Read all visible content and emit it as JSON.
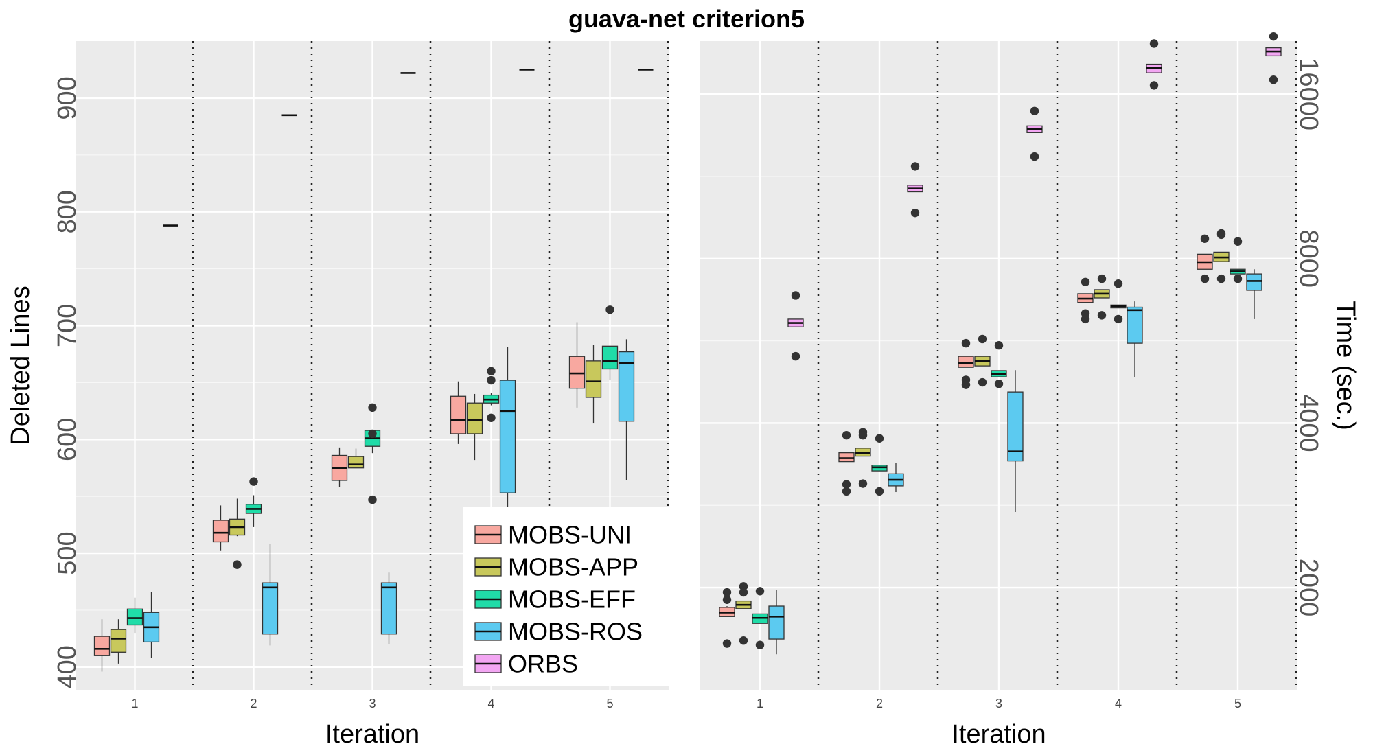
{
  "title": "guava-net criterion5",
  "legend": {
    "entries": [
      "MOBS-UNI",
      "MOBS-APP",
      "MOBS-EFF",
      "MOBS-ROS",
      "ORBS"
    ],
    "colors": [
      "#f8a8a0",
      "#c8c85c",
      "#20dca8",
      "#5ccaf0",
      "#f2a6f2"
    ]
  },
  "chart_data": [
    {
      "type": "box",
      "panel": "left",
      "xlabel": "Iteration",
      "ylabel": "Deleted Lines",
      "categories": [
        "1",
        "2",
        "3",
        "4",
        "5"
      ],
      "yticks": [
        "400",
        "500",
        "600",
        "700",
        "800",
        "900"
      ],
      "ylim": [
        380,
        950
      ],
      "grid": true,
      "series": [
        {
          "name": "MOBS-UNI",
          "boxes": [
            {
              "min": 396,
              "q1": 410,
              "median": 416,
              "q3": 427,
              "max": 442,
              "outliers": []
            },
            {
              "min": 502,
              "q1": 510,
              "median": 518,
              "q3": 529,
              "max": 542,
              "outliers": []
            },
            {
              "min": 558,
              "q1": 564,
              "median": 575,
              "q3": 586,
              "max": 593,
              "outliers": []
            },
            {
              "min": 596,
              "q1": 605,
              "median": 617,
              "q3": 638,
              "max": 651,
              "outliers": []
            },
            {
              "min": 628,
              "q1": 645,
              "median": 658,
              "q3": 673,
              "max": 703,
              "outliers": []
            }
          ]
        },
        {
          "name": "MOBS-APP",
          "boxes": [
            {
              "min": 403,
              "q1": 413,
              "median": 425,
              "q3": 433,
              "max": 442,
              "outliers": []
            },
            {
              "min": 515,
              "q1": 516,
              "median": 523,
              "q3": 530,
              "max": 548,
              "outliers": [
                490
              ]
            },
            {
              "min": 575,
              "q1": 575,
              "median": 578,
              "q3": 585,
              "max": 592,
              "outliers": []
            },
            {
              "min": 582,
              "q1": 605,
              "median": 617,
              "q3": 632,
              "max": 640,
              "outliers": []
            },
            {
              "min": 614,
              "q1": 637,
              "median": 651,
              "q3": 669,
              "max": 683,
              "outliers": []
            }
          ]
        },
        {
          "name": "MOBS-EFF",
          "boxes": [
            {
              "min": 430,
              "q1": 437,
              "median": 443,
              "q3": 451,
              "max": 461,
              "outliers": []
            },
            {
              "min": 523,
              "q1": 535,
              "median": 539,
              "q3": 543,
              "max": 551,
              "outliers": [
                563
              ]
            },
            {
              "min": 588,
              "q1": 594,
              "median": 601,
              "q3": 608,
              "max": 608,
              "outliers": [
                628,
                605,
                547
              ]
            },
            {
              "min": 630,
              "q1": 632,
              "median": 635,
              "q3": 639,
              "max": 641,
              "outliers": [
                660,
                652,
                619
              ]
            },
            {
              "min": 652,
              "q1": 662,
              "median": 669,
              "q3": 682,
              "max": 682,
              "outliers": [
                714
              ]
            }
          ]
        },
        {
          "name": "MOBS-ROS",
          "boxes": [
            {
              "min": 408,
              "q1": 422,
              "median": 435,
              "q3": 448,
              "max": 466,
              "outliers": []
            },
            {
              "min": 419,
              "q1": 429,
              "median": 470,
              "q3": 474,
              "max": 508,
              "outliers": []
            },
            {
              "min": 420,
              "q1": 429,
              "median": 470,
              "q3": 474,
              "max": 483,
              "outliers": []
            },
            {
              "min": 530,
              "q1": 553,
              "median": 625,
              "q3": 652,
              "max": 681,
              "outliers": []
            },
            {
              "min": 564,
              "q1": 616,
              "median": 667,
              "q3": 677,
              "max": 688,
              "outliers": []
            }
          ]
        },
        {
          "name": "ORBS",
          "boxes": [
            {
              "min": 788,
              "q1": 788,
              "median": 788,
              "q3": 788,
              "max": 788,
              "outliers": []
            },
            {
              "min": 885,
              "q1": 885,
              "median": 885,
              "q3": 885,
              "max": 885,
              "outliers": []
            },
            {
              "min": 922,
              "q1": 922,
              "median": 922,
              "q3": 922,
              "max": 922,
              "outliers": []
            },
            {
              "min": 925,
              "q1": 925,
              "median": 925,
              "q3": 925,
              "max": 925,
              "outliers": []
            },
            {
              "min": 925,
              "q1": 925,
              "median": 925,
              "q3": 925,
              "max": 925,
              "outliers": []
            }
          ]
        }
      ]
    },
    {
      "type": "box",
      "panel": "right",
      "xlabel": "Iteration",
      "ylabel": "Time (sec.)",
      "yscale": "log",
      "categories": [
        "1",
        "2",
        "3",
        "4",
        "5"
      ],
      "yticks": [
        "2000",
        "4000",
        "8000",
        "16000"
      ],
      "ylim": [
        1300,
        20000
      ],
      "grid": true,
      "series": [
        {
          "name": "MOBS-UNI",
          "boxes": [
            {
              "min": 1770,
              "q1": 1770,
              "median": 1800,
              "q3": 1840,
              "max": 1850,
              "outliers": [
                1900,
                1960,
                1580
              ]
            },
            {
              "min": 3400,
              "q1": 3400,
              "median": 3450,
              "q3": 3530,
              "max": 3530,
              "outliers": [
                3800,
                3090,
                3000
              ]
            },
            {
              "min": 5060,
              "q1": 5060,
              "median": 5150,
              "q3": 5300,
              "max": 5300,
              "outliers": [
                5600,
                4800,
                4700
              ]
            },
            {
              "min": 6650,
              "q1": 6650,
              "median": 6760,
              "q3": 6900,
              "max": 6900,
              "outliers": [
                7250,
                6350,
                6200
              ]
            },
            {
              "min": 7650,
              "q1": 7650,
              "median": 7880,
              "q3": 8150,
              "max": 8150,
              "outliers": [
                8700,
                7350
              ]
            }
          ]
        },
        {
          "name": "MOBS-APP",
          "boxes": [
            {
              "min": 1830,
              "q1": 1830,
              "median": 1860,
              "q3": 1890,
              "max": 1890,
              "outliers": [
                2010,
                1960,
                1600
              ]
            },
            {
              "min": 3480,
              "q1": 3480,
              "median": 3530,
              "q3": 3600,
              "max": 3600,
              "outliers": [
                3850,
                3800,
                3100
              ]
            },
            {
              "min": 5090,
              "q1": 5090,
              "median": 5200,
              "q3": 5300,
              "max": 5300,
              "outliers": [
                5700,
                4750
              ]
            },
            {
              "min": 6780,
              "q1": 6780,
              "median": 6900,
              "q3": 7020,
              "max": 7020,
              "outliers": [
                7350,
                6300
              ]
            },
            {
              "min": 7900,
              "q1": 7900,
              "median": 8040,
              "q3": 8220,
              "max": 8220,
              "outliers": [
                8900,
                8850,
                7350
              ]
            }
          ]
        },
        {
          "name": "MOBS-EFF",
          "boxes": [
            {
              "min": 1720,
              "q1": 1720,
              "median": 1760,
              "q3": 1790,
              "max": 1790,
              "outliers": [
                1970,
                1570
              ]
            },
            {
              "min": 3270,
              "q1": 3270,
              "median": 3320,
              "q3": 3350,
              "max": 3350,
              "outliers": [
                3750,
                3000
              ]
            },
            {
              "min": 4860,
              "q1": 4860,
              "median": 4920,
              "q3": 4990,
              "max": 4990,
              "outliers": [
                5550,
                4720
              ]
            },
            {
              "min": 6500,
              "q1": 6500,
              "median": 6550,
              "q3": 6580,
              "max": 6580,
              "outliers": [
                7200,
                6200
              ]
            },
            {
              "min": 7500,
              "q1": 7500,
              "median": 7580,
              "q3": 7650,
              "max": 7650,
              "outliers": [
                8600,
                7350
              ]
            }
          ]
        },
        {
          "name": "MOBS-ROS",
          "boxes": [
            {
              "min": 1510,
              "q1": 1610,
              "median": 1770,
              "q3": 1850,
              "max": 1980,
              "outliers": []
            },
            {
              "min": 2990,
              "q1": 3070,
              "median": 3150,
              "q3": 3230,
              "max": 3380,
              "outliers": []
            },
            {
              "min": 2750,
              "q1": 3410,
              "median": 3550,
              "q3": 4560,
              "max": 5000,
              "outliers": []
            },
            {
              "min": 4850,
              "q1": 5600,
              "median": 6440,
              "q3": 6520,
              "max": 6680,
              "outliers": []
            },
            {
              "min": 6200,
              "q1": 7000,
              "median": 7280,
              "q3": 7500,
              "max": 7650,
              "outliers": []
            }
          ]
        },
        {
          "name": "ORBS",
          "boxes": [
            {
              "min": 6000,
              "q1": 6000,
              "median": 6100,
              "q3": 6200,
              "max": 6200,
              "outliers": [
                6850,
                5300
              ]
            },
            {
              "min": 10600,
              "q1": 10600,
              "median": 10750,
              "q3": 10900,
              "max": 10900,
              "outliers": [
                11800,
                9700
              ]
            },
            {
              "min": 13600,
              "q1": 13600,
              "median": 13800,
              "q3": 14000,
              "max": 14000,
              "outliers": [
                14900,
                12300
              ]
            },
            {
              "min": 17500,
              "q1": 17500,
              "median": 17850,
              "q3": 18150,
              "max": 18150,
              "outliers": [
                19800,
                16600
              ]
            },
            {
              "min": 18800,
              "q1": 18800,
              "median": 19150,
              "q3": 19450,
              "max": 19450,
              "outliers": [
                20400,
                17000
              ]
            }
          ]
        }
      ]
    }
  ]
}
